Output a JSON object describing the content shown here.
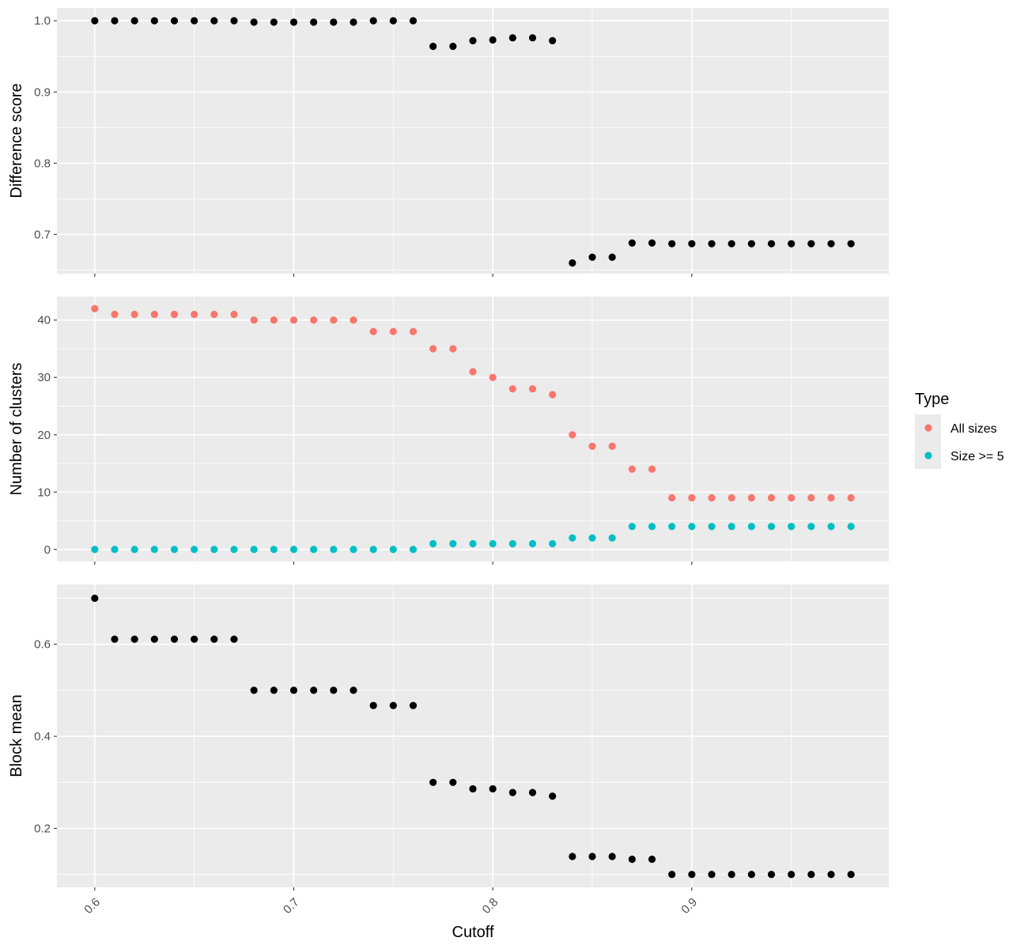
{
  "chart_data": {
    "type": "scatter",
    "xlabel": "Cutoff",
    "x_ticks": [
      0.6,
      0.7,
      0.8,
      0.9
    ],
    "x_tick_labels": [
      "0.6",
      "0.7",
      "0.8",
      "0.9"
    ],
    "xlim": [
      0.581,
      0.999
    ],
    "x": [
      0.6,
      0.61,
      0.62,
      0.63,
      0.64,
      0.65,
      0.66,
      0.67,
      0.68,
      0.69,
      0.7,
      0.71,
      0.72,
      0.73,
      0.74,
      0.75,
      0.76,
      0.77,
      0.78,
      0.79,
      0.8,
      0.81,
      0.82,
      0.83,
      0.84,
      0.85,
      0.86,
      0.87,
      0.88,
      0.89,
      0.9,
      0.91,
      0.92,
      0.93,
      0.94,
      0.95,
      0.96,
      0.97,
      0.98
    ],
    "grid": true,
    "legend": {
      "title": "Type",
      "position": "right",
      "entries": [
        {
          "label": "All sizes",
          "color": "#F8766D"
        },
        {
          "label": "Size >= 5",
          "color": "#00BFC4"
        }
      ]
    },
    "panels": [
      {
        "ylabel": "Difference score",
        "ylim": [
          0.645,
          1.018
        ],
        "y_ticks": [
          0.7,
          0.8,
          0.9,
          1.0
        ],
        "y_tick_labels": [
          "0.7",
          "0.8",
          "0.9",
          "1.0"
        ],
        "series": [
          {
            "color": "#000000",
            "values": [
              1.0,
              1.0,
              1.0,
              1.0,
              1.0,
              1.0,
              1.0,
              1.0,
              0.998,
              0.998,
              0.998,
              0.998,
              0.998,
              0.998,
              1.0,
              1.0,
              1.0,
              0.964,
              0.964,
              0.972,
              0.973,
              0.976,
              0.976,
              0.972,
              0.66,
              0.668,
              0.668,
              0.688,
              0.688,
              0.687,
              0.687,
              0.687,
              0.687,
              0.687,
              0.687,
              0.687,
              0.687,
              0.687,
              0.687
            ]
          }
        ]
      },
      {
        "ylabel": "Number of clusters",
        "ylim": [
          -2.1,
          44.1
        ],
        "y_ticks": [
          0,
          10,
          20,
          30,
          40
        ],
        "y_tick_labels": [
          "0",
          "10",
          "20",
          "30",
          "40"
        ],
        "series": [
          {
            "name": "All sizes",
            "color": "#F8766D",
            "values": [
              42,
              41,
              41,
              41,
              41,
              41,
              41,
              41,
              40,
              40,
              40,
              40,
              40,
              40,
              38,
              38,
              38,
              35,
              35,
              31,
              30,
              28,
              28,
              27,
              20,
              18,
              18,
              14,
              14,
              9,
              9,
              9,
              9,
              9,
              9,
              9,
              9,
              9,
              9
            ]
          },
          {
            "name": "Size >= 5",
            "color": "#00BFC4",
            "values": [
              0,
              0,
              0,
              0,
              0,
              0,
              0,
              0,
              0,
              0,
              0,
              0,
              0,
              0,
              0,
              0,
              0,
              1,
              1,
              1,
              1,
              1,
              1,
              1,
              2,
              2,
              2,
              4,
              4,
              4,
              4,
              4,
              4,
              4,
              4,
              4,
              4,
              4,
              4
            ]
          }
        ]
      },
      {
        "ylabel": "Block mean",
        "ylim": [
          0.072,
          0.73
        ],
        "y_ticks": [
          0.2,
          0.4,
          0.6
        ],
        "y_tick_labels": [
          "0.2",
          "0.4",
          "0.6"
        ],
        "series": [
          {
            "color": "#000000",
            "values": [
              0.7,
              0.611,
              0.611,
              0.611,
              0.611,
              0.611,
              0.611,
              0.611,
              0.5,
              0.5,
              0.5,
              0.5,
              0.5,
              0.5,
              0.467,
              0.467,
              0.467,
              0.3,
              0.3,
              0.286,
              0.286,
              0.278,
              0.278,
              0.27,
              0.139,
              0.139,
              0.139,
              0.133,
              0.133,
              0.1,
              0.1,
              0.1,
              0.1,
              0.1,
              0.1,
              0.1,
              0.1,
              0.1,
              0.1
            ]
          }
        ]
      }
    ]
  }
}
